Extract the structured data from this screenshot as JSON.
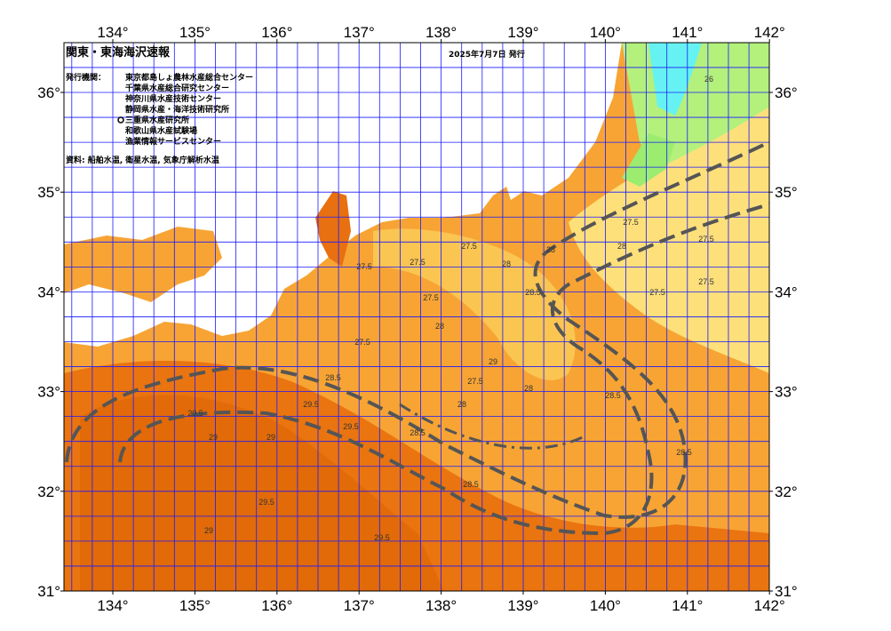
{
  "header": {
    "title": "関東・東海海沢速報",
    "date": "2025年7月7日 発行"
  },
  "issuers": {
    "label": "発行機関：",
    "items": [
      "東京都島しょ農林水産総合センター",
      "千葉県水産総合研究センター",
      "神奈川県水産技術センター",
      "静岡県水産・海洋技術研究所",
      "三重県水産研究所",
      "和歌山県水産試験場",
      "漁業情報サービスセンター"
    ]
  },
  "source": "資料: 船舶水温, 衛星水温, 気象庁解析水温",
  "map": {
    "lon_ticks": [
      {
        "value": 134,
        "label": "134°"
      },
      {
        "value": 135,
        "label": "135°"
      },
      {
        "value": 136,
        "label": "136°"
      },
      {
        "value": 137,
        "label": "137°"
      },
      {
        "value": 138,
        "label": "138°"
      },
      {
        "value": 139,
        "label": "139°"
      },
      {
        "value": 140,
        "label": "140°"
      },
      {
        "value": 141,
        "label": "141°"
      },
      {
        "value": 142,
        "label": "142°"
      }
    ],
    "lat_ticks": [
      {
        "value": 31,
        "label": "31°"
      },
      {
        "value": 32,
        "label": "32°"
      },
      {
        "value": 33,
        "label": "33°"
      },
      {
        "value": 34,
        "label": "34°"
      },
      {
        "value": 35,
        "label": "35°"
      },
      {
        "value": 36,
        "label": "36°"
      }
    ],
    "contour_labels": [
      "27.5",
      "27.5",
      "27.5",
      "27.5",
      "27.5",
      "27.5",
      "27.5",
      "27.5",
      "27.5",
      "27.5",
      "28",
      "28",
      "28",
      "28",
      "28",
      "28",
      "28.5",
      "28.5",
      "28.5",
      "28.5",
      "28.5",
      "28.5",
      "29",
      "29",
      "29",
      "29",
      "29.5",
      "29.5",
      "29.5",
      "29.5",
      "29.5",
      "26"
    ]
  }
}
